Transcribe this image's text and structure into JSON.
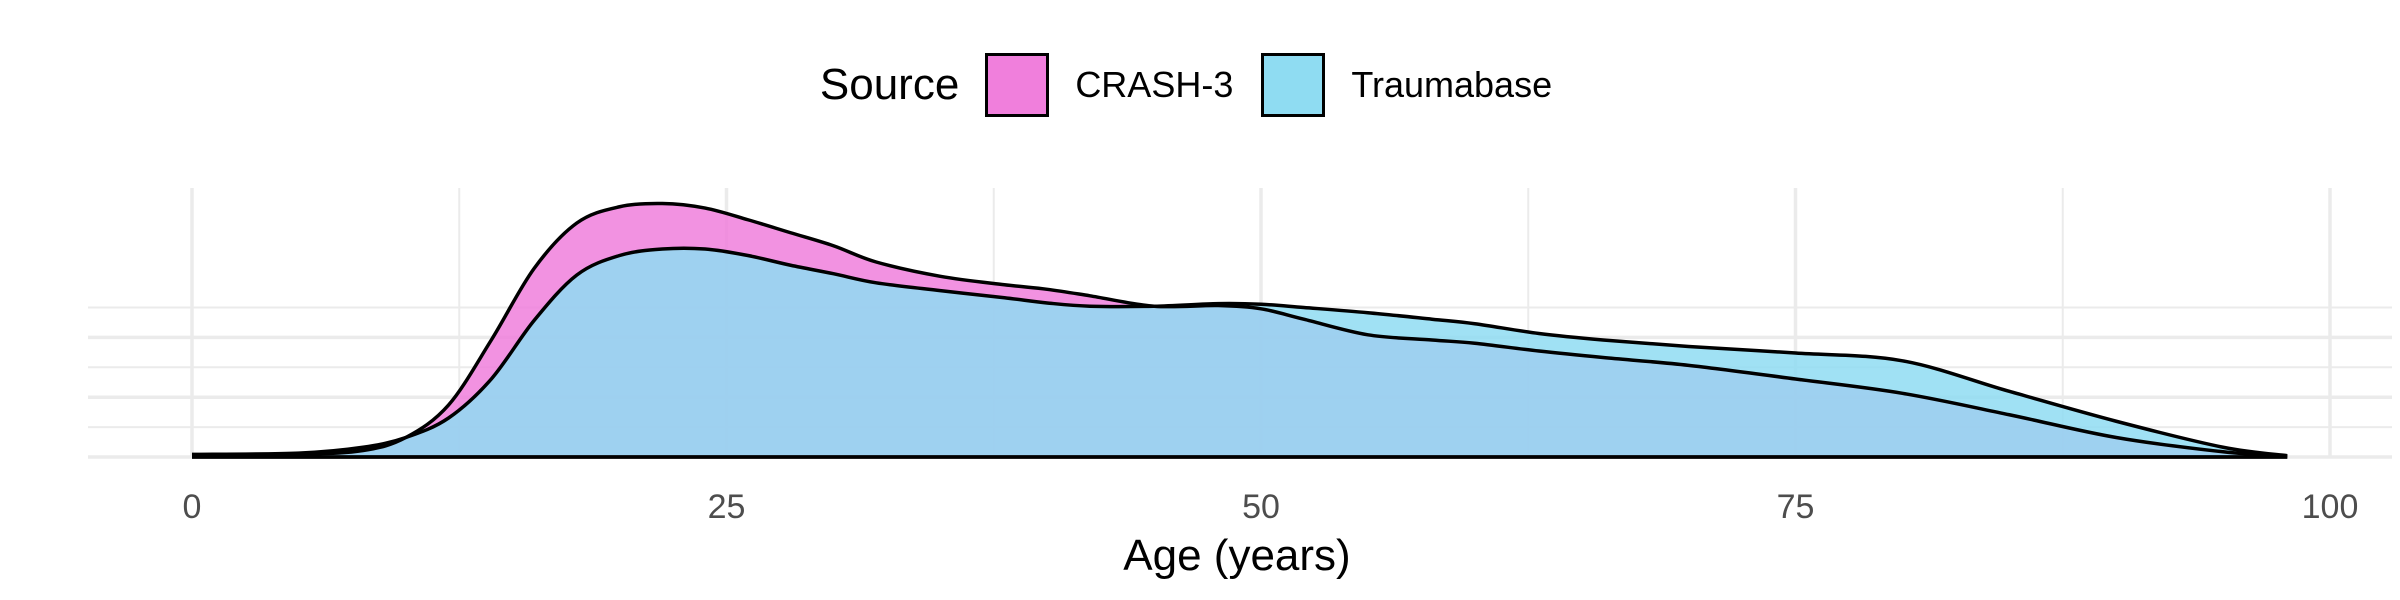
{
  "chart_data": {
    "type": "area",
    "subtype": "density",
    "title": "",
    "xlabel": "Age (years)",
    "ylabel": "",
    "xlim": [
      0,
      100
    ],
    "x_ticks": [
      0,
      25,
      50,
      75,
      100
    ],
    "y_ticks_shown": false,
    "grid": true,
    "legend_position": "top",
    "legend_title": "Source",
    "series": [
      {
        "name": "CRASH-3",
        "color": "#f07fdc",
        "x": [
          0,
          5,
          8,
          10,
          12,
          14,
          16,
          18,
          20,
          22,
          24,
          26,
          28,
          30,
          32,
          35,
          38,
          40,
          42,
          45,
          48,
          50,
          52,
          55,
          58,
          60,
          63,
          66,
          70,
          75,
          80,
          85,
          90,
          95,
          98
        ],
        "y": [
          0.0002,
          0.0004,
          0.001,
          0.003,
          0.008,
          0.018,
          0.029,
          0.036,
          0.0385,
          0.039,
          0.0383,
          0.0365,
          0.0345,
          0.0325,
          0.03,
          0.0278,
          0.0265,
          0.0258,
          0.0248,
          0.0232,
          0.0233,
          0.0228,
          0.0212,
          0.0188,
          0.018,
          0.0175,
          0.0163,
          0.0153,
          0.0141,
          0.012,
          0.0098,
          0.0065,
          0.003,
          0.0008,
          0.0001
        ]
      },
      {
        "name": "Traumabase",
        "color": "#8fdcf2",
        "x": [
          0,
          5,
          8,
          10,
          12,
          14,
          16,
          18,
          20,
          22,
          24,
          26,
          28,
          30,
          32,
          35,
          38,
          40,
          42,
          45,
          48,
          50,
          52,
          55,
          58,
          60,
          63,
          66,
          70,
          75,
          80,
          85,
          90,
          95,
          98
        ],
        "y": [
          0.0004,
          0.0006,
          0.0015,
          0.003,
          0.006,
          0.012,
          0.021,
          0.028,
          0.031,
          0.032,
          0.032,
          0.031,
          0.0295,
          0.0282,
          0.0268,
          0.0256,
          0.0245,
          0.0237,
          0.0232,
          0.0232,
          0.0236,
          0.0235,
          0.023,
          0.0222,
          0.0212,
          0.0205,
          0.019,
          0.018,
          0.017,
          0.016,
          0.0148,
          0.0101,
          0.0055,
          0.0015,
          0.0002
        ]
      }
    ],
    "overlap_color": "#8c9be4"
  }
}
